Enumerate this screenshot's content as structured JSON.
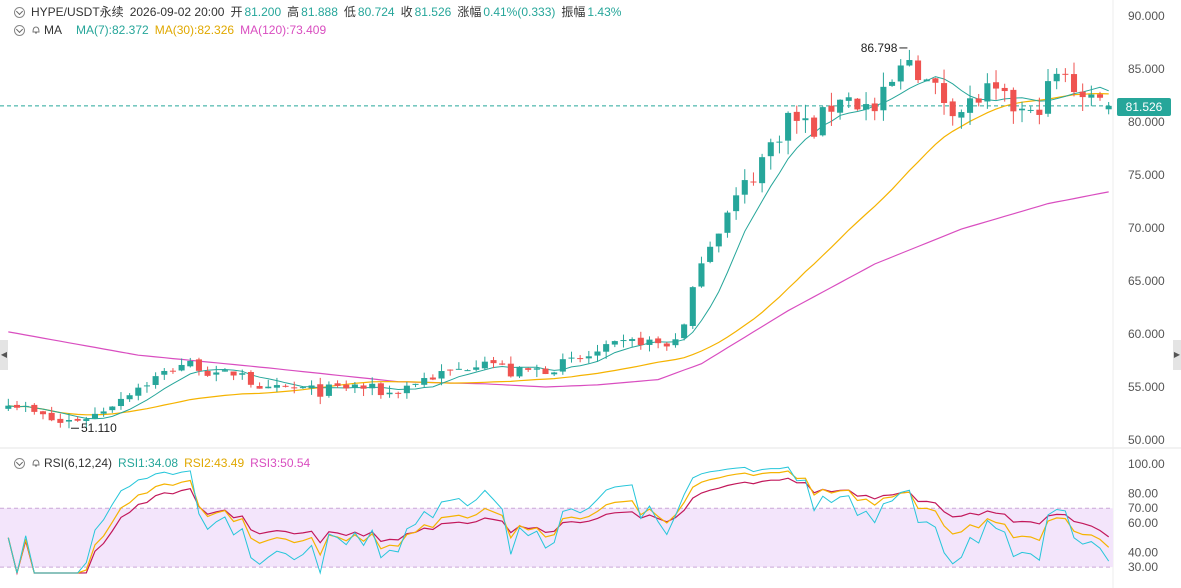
{
  "header": {
    "symbol": "HYPE/USDT永续",
    "datetime": "2026-09-02 20:00",
    "open_label": "开",
    "open": "81.200",
    "high_label": "高",
    "high": "81.888",
    "low_label": "低",
    "low": "80.724",
    "close_label": "收",
    "close": "81.526",
    "change_label": "涨幅",
    "change": "0.41%(0.333)",
    "amplitude_label": "振幅",
    "amplitude": "1.43%"
  },
  "ma_legend": {
    "label": "MA",
    "ma7": "MA(7):82.372",
    "ma30": "MA(30):82.326",
    "ma120": "MA(120):73.409"
  },
  "rsi_legend": {
    "label": "RSI(6,12,24)",
    "rsi1": "RSI1:34.08",
    "rsi2": "RSI2:43.49",
    "rsi3": "RSI3:50.54"
  },
  "current_price": "81.526",
  "price_annotations": {
    "high": "86.798",
    "low": "51.110"
  },
  "colors": {
    "up": "#26a69a",
    "down": "#ef5350",
    "ma7": "#26a69a",
    "ma30": "#f5b301",
    "ma120": "#d94ec0",
    "rsi1": "#26c6da",
    "rsi2": "#f5b301",
    "rsi3": "#c2185b",
    "rsi_band": "#f3e5fb"
  },
  "chart_data": [
    {
      "type": "candlestick",
      "title": "HYPE/USDT永续",
      "ylim": [
        50,
        90
      ],
      "y_ticks": [
        "90.000",
        "85.000",
        "80.000",
        "75.000",
        "70.000",
        "65.000",
        "60.000",
        "55.000",
        "50.000"
      ],
      "y_tick_values": [
        90,
        85,
        80,
        75,
        70,
        65,
        60,
        55,
        50
      ],
      "current_price_line": 81.526,
      "high_marker": {
        "index": 104,
        "value": 86.798
      },
      "low_marker": {
        "index": 7,
        "value": 51.11
      },
      "close_path": [
        [
          0,
          53.8
        ],
        [
          3,
          52.5
        ],
        [
          6,
          51.6
        ],
        [
          10,
          52.4
        ],
        [
          14,
          54.6
        ],
        [
          18,
          56.3
        ],
        [
          20,
          57.2
        ],
        [
          22,
          57.0
        ],
        [
          24,
          55.9
        ],
        [
          27,
          56.6
        ],
        [
          29,
          54.4
        ],
        [
          32,
          54.9
        ],
        [
          36,
          54.6
        ],
        [
          40,
          55.1
        ],
        [
          44,
          54.4
        ],
        [
          48,
          55.8
        ],
        [
          52,
          56.6
        ],
        [
          55,
          57.8
        ],
        [
          58,
          56.3
        ],
        [
          62,
          56.7
        ],
        [
          66,
          57.6
        ],
        [
          70,
          58.8
        ],
        [
          73,
          59.4
        ],
        [
          76,
          58.9
        ],
        [
          78,
          60.7
        ],
        [
          80,
          67.2
        ],
        [
          84,
          72.6
        ],
        [
          88,
          77.8
        ],
        [
          90,
          80.5
        ],
        [
          93,
          79.3
        ],
        [
          96,
          82.6
        ],
        [
          100,
          81.0
        ],
        [
          104,
          86.1
        ],
        [
          106,
          83.7
        ],
        [
          108,
          82.2
        ],
        [
          110,
          81.1
        ],
        [
          113,
          82.8
        ],
        [
          116,
          81.4
        ],
        [
          118,
          80.4
        ],
        [
          121,
          84.4
        ],
        [
          124,
          82.9
        ],
        [
          127,
          81.526
        ]
      ],
      "ma120_path": [
        [
          0,
          60.2
        ],
        [
          15,
          58.0
        ],
        [
          30,
          56.8
        ],
        [
          45,
          55.5
        ],
        [
          55,
          55.3
        ],
        [
          62,
          55.0
        ],
        [
          68,
          55.2
        ],
        [
          75,
          55.7
        ],
        [
          80,
          57.2
        ],
        [
          90,
          62.2
        ],
        [
          100,
          66.6
        ],
        [
          110,
          69.9
        ],
        [
          120,
          72.3
        ],
        [
          127,
          73.409
        ]
      ],
      "ma7_last": 82.372,
      "ma30_last": 82.326,
      "ma120_last": 73.409
    },
    {
      "type": "line",
      "title": "RSI(6,12,24)",
      "ylim": [
        25,
        100
      ],
      "y_ticks": [
        "100.00",
        "80.00",
        "70.00",
        "60.00",
        "40.00",
        "30.00"
      ],
      "y_tick_values": [
        100,
        80,
        70,
        60,
        40,
        30
      ],
      "band": [
        30,
        70
      ],
      "series": [
        {
          "name": "RSI1",
          "last": 34.08
        },
        {
          "name": "RSI2",
          "last": 43.49
        },
        {
          "name": "RSI3",
          "last": 50.54
        }
      ]
    }
  ]
}
